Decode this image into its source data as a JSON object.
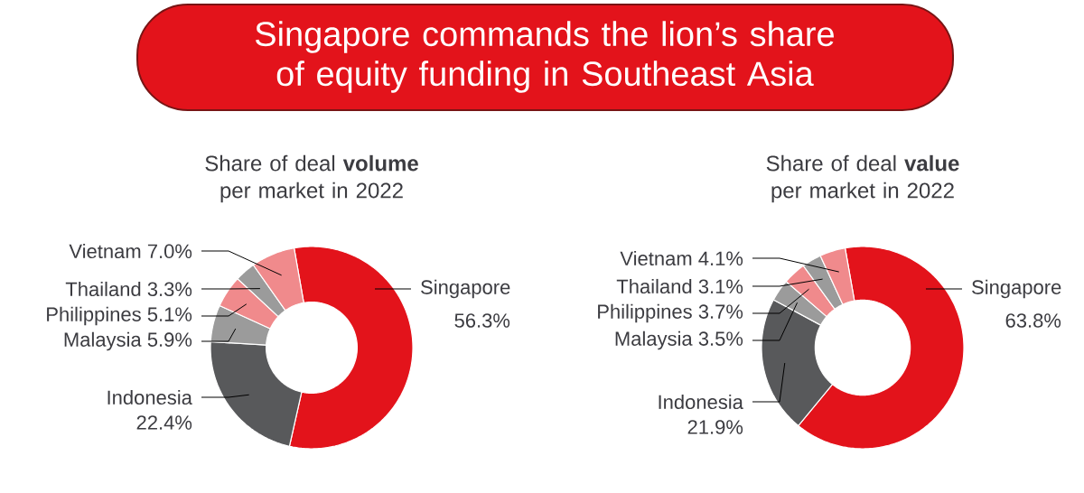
{
  "chart_data": [
    {
      "type": "donut",
      "title": "Singapore commands the lion’s share of equity funding in Southeast Asia",
      "subtitle": "Share of deal **volume** per market in 2022",
      "categories": [
        "Singapore",
        "Indonesia",
        "Malaysia",
        "Philippines",
        "Thailand",
        "Vietnam"
      ],
      "values": [
        56.3,
        22.4,
        5.9,
        5.1,
        3.3,
        7.0
      ],
      "colors": [
        "#e3131b",
        "#58595b",
        "#9b9b9b",
        "#f08a8c",
        "#9b9b9b",
        "#f08a8c"
      ],
      "value_labels": [
        "56.3%",
        "22.4%",
        "5.9%",
        "5.1%",
        "3.3%",
        "7.0%"
      ]
    },
    {
      "type": "donut",
      "subtitle": "Share of deal **value** per market in 2022",
      "categories": [
        "Singapore",
        "Indonesia",
        "Malaysia",
        "Philippines",
        "Thailand",
        "Vietnam"
      ],
      "values": [
        63.8,
        21.9,
        3.5,
        3.7,
        3.1,
        4.1
      ],
      "colors": [
        "#e3131b",
        "#58595b",
        "#9b9b9b",
        "#f08a8c",
        "#9b9b9b",
        "#f08a8c"
      ],
      "value_labels": [
        "63.8%",
        "21.9%",
        "3.5%",
        "3.7%",
        "3.1%",
        "4.1%"
      ]
    }
  ]
}
